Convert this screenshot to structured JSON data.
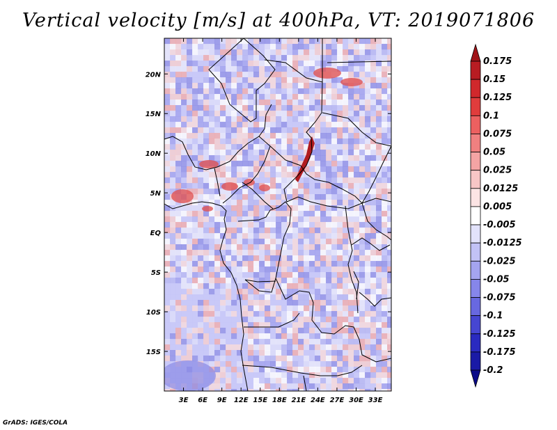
{
  "title": "Vertical velocity [m/s] at 400hPa, VT: 2019071806",
  "footer": "GrADS: IGES/COLA",
  "chart_data": {
    "type": "heatmap",
    "variable": "Vertical velocity",
    "units": "m/s",
    "level": "400hPa",
    "valid_time": "2019071806",
    "xlim": [
      0,
      35.5
    ],
    "ylim": [
      -20,
      24.5
    ],
    "x_ticks": [
      {
        "value": 3,
        "label": "3E"
      },
      {
        "value": 6,
        "label": "6E"
      },
      {
        "value": 9,
        "label": "9E"
      },
      {
        "value": 12,
        "label": "12E"
      },
      {
        "value": 15,
        "label": "15E"
      },
      {
        "value": 18,
        "label": "18E"
      },
      {
        "value": 21,
        "label": "21E"
      },
      {
        "value": 24,
        "label": "24E"
      },
      {
        "value": 27,
        "label": "27E"
      },
      {
        "value": 30,
        "label": "30E"
      },
      {
        "value": 33,
        "label": "33E"
      }
    ],
    "y_ticks": [
      {
        "value": 20,
        "label": "20N"
      },
      {
        "value": 15,
        "label": "15N"
      },
      {
        "value": 10,
        "label": "10N"
      },
      {
        "value": 5,
        "label": "5N"
      },
      {
        "value": 0,
        "label": "EQ"
      },
      {
        "value": -5,
        "label": "5S"
      },
      {
        "value": -10,
        "label": "10S"
      },
      {
        "value": -15,
        "label": "15S"
      }
    ],
    "colorbar": {
      "labels": [
        "0.175",
        "0.15",
        "0.125",
        "0.1",
        "0.075",
        "0.05",
        "0.025",
        "0.0125",
        "0.005",
        "-0.005",
        "-0.0125",
        "-0.025",
        "-0.05",
        "-0.075",
        "-0.1",
        "-0.125",
        "-0.175",
        "-0.2"
      ],
      "colors": [
        "#a01418",
        "#b81c22",
        "#d0282c",
        "#e03c3c",
        "#ec6060",
        "#f08080",
        "#f4a4a4",
        "#f8c6c6",
        "#fce4e4",
        "#ffffff",
        "#e2e2fb",
        "#c2c2f6",
        "#a4a4f0",
        "#8686ea",
        "#6868e0",
        "#4646d2",
        "#2a2ac0",
        "#1a1aa6",
        "#0a0a88"
      ]
    }
  }
}
